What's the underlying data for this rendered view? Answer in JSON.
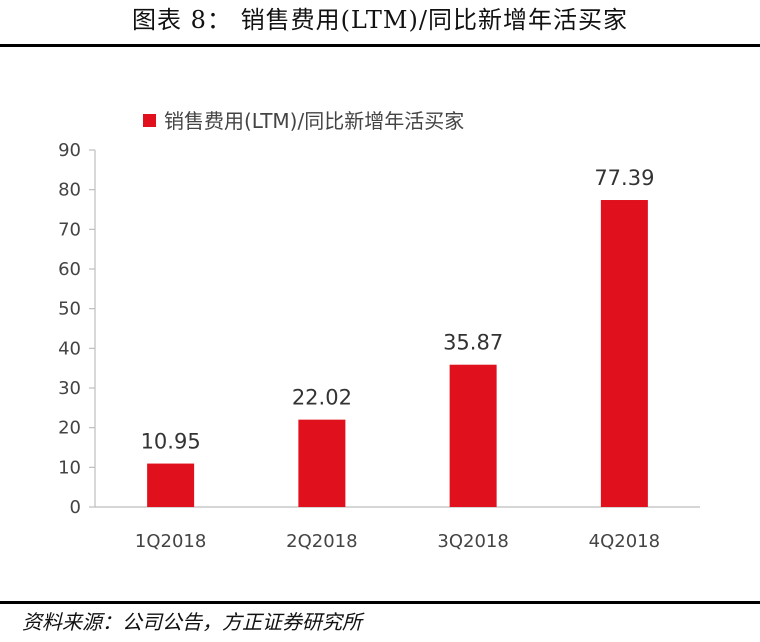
{
  "figure": {
    "title": "图表 8： 销售费用(LTM)/同比新增年活买家",
    "source": "资料来源：公司公告，方正证券研究所"
  },
  "chart_data": {
    "type": "bar",
    "categories": [
      "1Q2018",
      "2Q2018",
      "3Q2018",
      "4Q2018"
    ],
    "series": [
      {
        "name": "销售费用(LTM)/同比新增年活买家",
        "values": [
          10.95,
          22.02,
          35.87,
          77.39
        ],
        "color": "#e0101c"
      }
    ],
    "data_labels": [
      "10.95",
      "22.02",
      "35.87",
      "77.39"
    ],
    "ylim": [
      0,
      90
    ],
    "yticks": [
      0,
      10,
      20,
      30,
      40,
      50,
      60,
      70,
      80,
      90
    ],
    "grid": false,
    "legend_position": "top-left"
  }
}
